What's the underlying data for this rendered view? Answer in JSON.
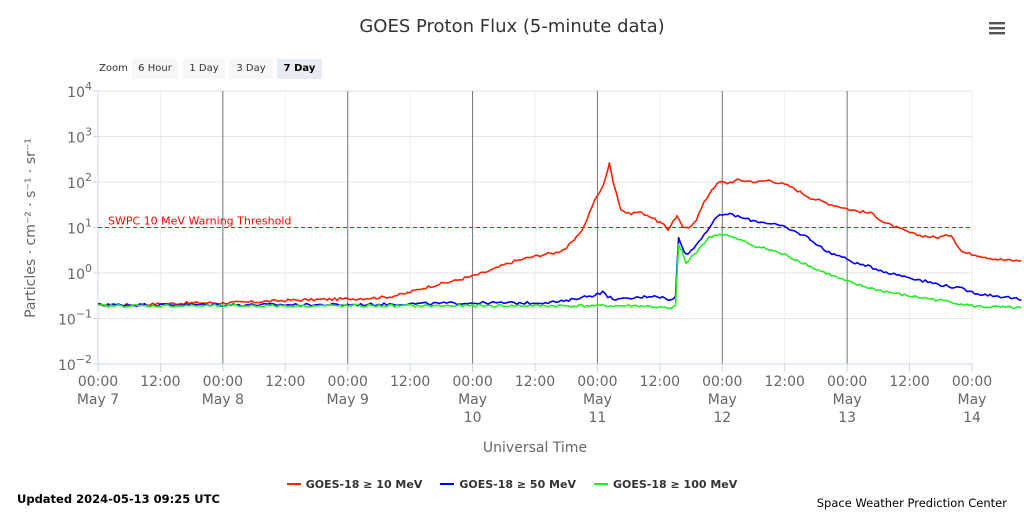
{
  "header": {
    "menu_icon": "hamburger-menu-icon"
  },
  "zoom": {
    "label": "Zoom",
    "buttons": [
      "6 Hour",
      "1 Day",
      "3 Day",
      "7 Day"
    ],
    "selected": "7 Day"
  },
  "footer": {
    "updated": "Updated 2024-05-13 09:25 UTC",
    "credit": "Space Weather Prediction Center"
  },
  "chart_data": {
    "type": "line",
    "title": "GOES Proton Flux (5-minute data)",
    "xlabel": "Universal Time",
    "ylabel": "Particles · cm⁻² · s⁻¹ · sr⁻¹",
    "y_scale": "log",
    "ylim": [
      0.01,
      10000
    ],
    "xlim": [
      "2024-05-07 00:00",
      "2024-05-14 00:00"
    ],
    "x_unit": "hours since May 7 00:00 UTC",
    "grid": true,
    "legend_position": "bottom",
    "y_ticks": [
      {
        "base": "10",
        "exp": "4",
        "value": 10000
      },
      {
        "base": "10",
        "exp": "3",
        "value": 1000
      },
      {
        "base": "10",
        "exp": "2",
        "value": 100
      },
      {
        "base": "10",
        "exp": "1",
        "value": 10
      },
      {
        "base": "10",
        "exp": "0",
        "value": 1
      },
      {
        "base": "10",
        "exp": "−1",
        "value": 0.1
      },
      {
        "base": "10",
        "exp": "−2",
        "value": 0.01
      }
    ],
    "x_ticks": [
      {
        "time": "00:00",
        "date": [
          "May 7"
        ]
      },
      {
        "time": "12:00",
        "date": []
      },
      {
        "time": "00:00",
        "date": [
          "May 8"
        ]
      },
      {
        "time": "12:00",
        "date": []
      },
      {
        "time": "00:00",
        "date": [
          "May 9"
        ]
      },
      {
        "time": "12:00",
        "date": []
      },
      {
        "time": "00:00",
        "date": [
          "May",
          "10"
        ]
      },
      {
        "time": "12:00",
        "date": []
      },
      {
        "time": "00:00",
        "date": [
          "May",
          "11"
        ]
      },
      {
        "time": "12:00",
        "date": []
      },
      {
        "time": "00:00",
        "date": [
          "May",
          "12"
        ]
      },
      {
        "time": "12:00",
        "date": []
      },
      {
        "time": "00:00",
        "date": [
          "May",
          "13"
        ]
      },
      {
        "time": "12:00",
        "date": []
      },
      {
        "time": "00:00",
        "date": [
          "May",
          "14"
        ]
      }
    ],
    "day_lines_hours": [
      24,
      48,
      72,
      96,
      120,
      144
    ],
    "threshold": {
      "value": 10,
      "label": "SWPC 10 MeV Warning Threshold",
      "color": "#ff0000"
    },
    "series": [
      {
        "name": "GOES-18 ≥ 10 MeV",
        "color": "#ff2000",
        "points": [
          [
            0,
            0.2
          ],
          [
            6,
            0.2
          ],
          [
            12,
            0.21
          ],
          [
            18,
            0.22
          ],
          [
            24,
            0.22
          ],
          [
            30,
            0.23
          ],
          [
            36,
            0.25
          ],
          [
            42,
            0.26
          ],
          [
            48,
            0.27
          ],
          [
            52,
            0.28
          ],
          [
            56,
            0.3
          ],
          [
            59,
            0.35
          ],
          [
            62,
            0.45
          ],
          [
            65,
            0.55
          ],
          [
            68,
            0.65
          ],
          [
            71,
            0.8
          ],
          [
            74,
            1.0
          ],
          [
            76,
            1.2
          ],
          [
            78,
            1.5
          ],
          [
            80,
            1.8
          ],
          [
            83,
            2.2
          ],
          [
            86,
            2.6
          ],
          [
            88,
            2.8
          ],
          [
            90,
            3.5
          ],
          [
            92,
            6
          ],
          [
            93.5,
            11
          ],
          [
            95,
            30
          ],
          [
            96,
            50
          ],
          [
            96.8,
            70
          ],
          [
            97.4,
            110
          ],
          [
            98.3,
            250
          ],
          [
            99,
            110
          ],
          [
            99.6,
            60
          ],
          [
            100.5,
            25
          ],
          [
            102,
            20
          ],
          [
            104,
            22
          ],
          [
            106,
            18
          ],
          [
            107,
            15
          ],
          [
            108,
            13
          ],
          [
            108.8,
            11
          ],
          [
            109.6,
            9
          ],
          [
            110.2,
            12
          ],
          [
            110.8,
            15
          ],
          [
            111.3,
            18
          ],
          [
            112,
            12
          ],
          [
            112.7,
            9.5
          ],
          [
            113.5,
            10
          ],
          [
            115,
            15
          ],
          [
            116.5,
            35
          ],
          [
            118,
            70
          ],
          [
            119.5,
            100
          ],
          [
            121,
            95
          ],
          [
            123,
            110
          ],
          [
            125,
            105
          ],
          [
            127,
            100
          ],
          [
            129,
            110
          ],
          [
            131,
            95
          ],
          [
            133,
            80
          ],
          [
            135,
            60
          ],
          [
            137,
            45
          ],
          [
            139,
            38
          ],
          [
            141,
            32
          ],
          [
            143,
            28
          ],
          [
            145,
            24
          ],
          [
            147,
            22
          ],
          [
            149,
            20
          ],
          [
            151,
            13
          ],
          [
            153,
            10.5
          ],
          [
            155,
            8.5
          ],
          [
            157,
            7
          ],
          [
            159,
            6.5
          ],
          [
            161,
            6
          ],
          [
            163,
            6.5
          ],
          [
            164,
            7
          ],
          [
            165,
            4.5
          ],
          [
            166,
            3
          ],
          [
            167,
            2.7
          ],
          [
            169,
            2.5
          ],
          [
            171,
            2.2
          ],
          [
            173,
            2.0
          ],
          [
            175,
            1.9
          ],
          [
            177.5,
            1.85
          ]
        ]
      },
      {
        "name": "GOES-18 ≥ 50 MeV",
        "color": "#0000ff",
        "points": [
          [
            0,
            0.2
          ],
          [
            12,
            0.2
          ],
          [
            24,
            0.2
          ],
          [
            36,
            0.2
          ],
          [
            48,
            0.2
          ],
          [
            60,
            0.21
          ],
          [
            72,
            0.22
          ],
          [
            84,
            0.22
          ],
          [
            90,
            0.24
          ],
          [
            92,
            0.28
          ],
          [
            95,
            0.32
          ],
          [
            97,
            0.38
          ],
          [
            98,
            0.3
          ],
          [
            100,
            0.26
          ],
          [
            103,
            0.28
          ],
          [
            105,
            0.3
          ],
          [
            107,
            0.32
          ],
          [
            109,
            0.28
          ],
          [
            110.2,
            0.25
          ],
          [
            111,
            0.3
          ],
          [
            111.6,
            6
          ],
          [
            112.3,
            4
          ],
          [
            113,
            2.5
          ],
          [
            114.5,
            3.5
          ],
          [
            116,
            6
          ],
          [
            117.5,
            10
          ],
          [
            119,
            17
          ],
          [
            120.5,
            20
          ],
          [
            122,
            19
          ],
          [
            124,
            16
          ],
          [
            126,
            14
          ],
          [
            128,
            13
          ],
          [
            130,
            12
          ],
          [
            132,
            10
          ],
          [
            134,
            8
          ],
          [
            136,
            6.5
          ],
          [
            138,
            4.5
          ],
          [
            140,
            3
          ],
          [
            142,
            2.5
          ],
          [
            144,
            2
          ],
          [
            146,
            1.6
          ],
          [
            148,
            1.4
          ],
          [
            150,
            1.2
          ],
          [
            152,
            1
          ],
          [
            154,
            0.9
          ],
          [
            156,
            0.8
          ],
          [
            158,
            0.7
          ],
          [
            160,
            0.62
          ],
          [
            162,
            0.55
          ],
          [
            164,
            0.5
          ],
          [
            166,
            0.45
          ],
          [
            168,
            0.38
          ],
          [
            170,
            0.34
          ],
          [
            172,
            0.32
          ],
          [
            174,
            0.3
          ],
          [
            176,
            0.28
          ],
          [
            177.5,
            0.25
          ]
        ]
      },
      {
        "name": "GOES-18 ≥ 100 MeV",
        "color": "#22ee22",
        "points": [
          [
            0,
            0.19
          ],
          [
            12,
            0.19
          ],
          [
            24,
            0.19
          ],
          [
            36,
            0.19
          ],
          [
            48,
            0.19
          ],
          [
            60,
            0.19
          ],
          [
            72,
            0.19
          ],
          [
            84,
            0.19
          ],
          [
            90,
            0.19
          ],
          [
            96,
            0.19
          ],
          [
            104,
            0.19
          ],
          [
            107,
            0.18
          ],
          [
            109,
            0.17
          ],
          [
            110.3,
            0.16
          ],
          [
            111,
            0.2
          ],
          [
            111.6,
            4
          ],
          [
            112.3,
            3
          ],
          [
            113,
            1.6
          ],
          [
            114.5,
            2.5
          ],
          [
            116,
            4
          ],
          [
            117.5,
            6
          ],
          [
            119,
            7
          ],
          [
            120.5,
            7
          ],
          [
            122,
            6
          ],
          [
            124,
            5
          ],
          [
            126,
            4
          ],
          [
            128,
            3.5
          ],
          [
            130,
            3
          ],
          [
            132,
            2.5
          ],
          [
            134,
            2
          ],
          [
            136,
            1.6
          ],
          [
            138,
            1.2
          ],
          [
            140,
            1
          ],
          [
            142,
            0.8
          ],
          [
            144,
            0.65
          ],
          [
            146,
            0.55
          ],
          [
            148,
            0.48
          ],
          [
            150,
            0.42
          ],
          [
            152,
            0.38
          ],
          [
            154,
            0.34
          ],
          [
            156,
            0.31
          ],
          [
            158,
            0.29
          ],
          [
            160,
            0.27
          ],
          [
            162,
            0.25
          ],
          [
            164,
            0.23
          ],
          [
            166,
            0.21
          ],
          [
            168,
            0.19
          ],
          [
            170,
            0.18
          ],
          [
            172,
            0.18
          ],
          [
            174,
            0.175
          ],
          [
            177.5,
            0.17
          ]
        ]
      }
    ]
  }
}
